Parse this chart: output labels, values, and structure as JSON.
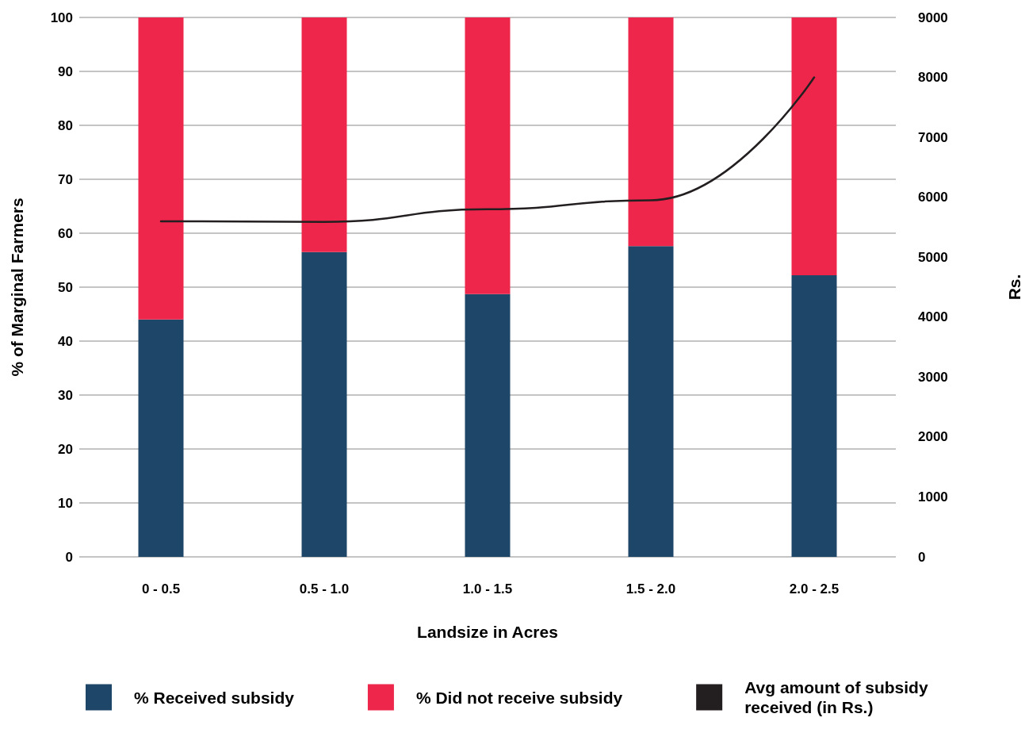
{
  "chart_data": {
    "type": "bar",
    "categories": [
      "0 - 0.5",
      "0.5 - 1.0",
      "1.0 - 1.5",
      "1.5 - 2.0",
      "2.0 - 2.5"
    ],
    "xlabel": "Landsize in Acres",
    "ylabel": "% of Marginal Farmers",
    "y2label": "Rs.",
    "stacked": true,
    "series": [
      {
        "name": "% Received subsidy",
        "color": "#1e4669",
        "values": [
          44,
          56.5,
          48.7,
          57.6,
          52.2
        ]
      },
      {
        "name": "% Did not receive subsidy",
        "color": "#ee264b",
        "values": [
          56,
          43.5,
          51.3,
          42.4,
          47.8
        ]
      },
      {
        "name": "Avg amount of subsidy received (in Rs.)",
        "type": "line",
        "axis": "y2",
        "color": "#231f20",
        "values": [
          5600,
          5590,
          5800,
          5950,
          8000
        ]
      }
    ],
    "ylim": [
      0,
      100
    ],
    "yticks": [
      0,
      10,
      20,
      30,
      40,
      50,
      60,
      70,
      80,
      90,
      100
    ],
    "y2lim": [
      0,
      9000
    ],
    "y2ticks": [
      0,
      1000,
      2000,
      3000,
      4000,
      5000,
      6000,
      7000,
      8000,
      9000
    ],
    "grid": "y",
    "legend": "bottom",
    "marker": "none"
  }
}
